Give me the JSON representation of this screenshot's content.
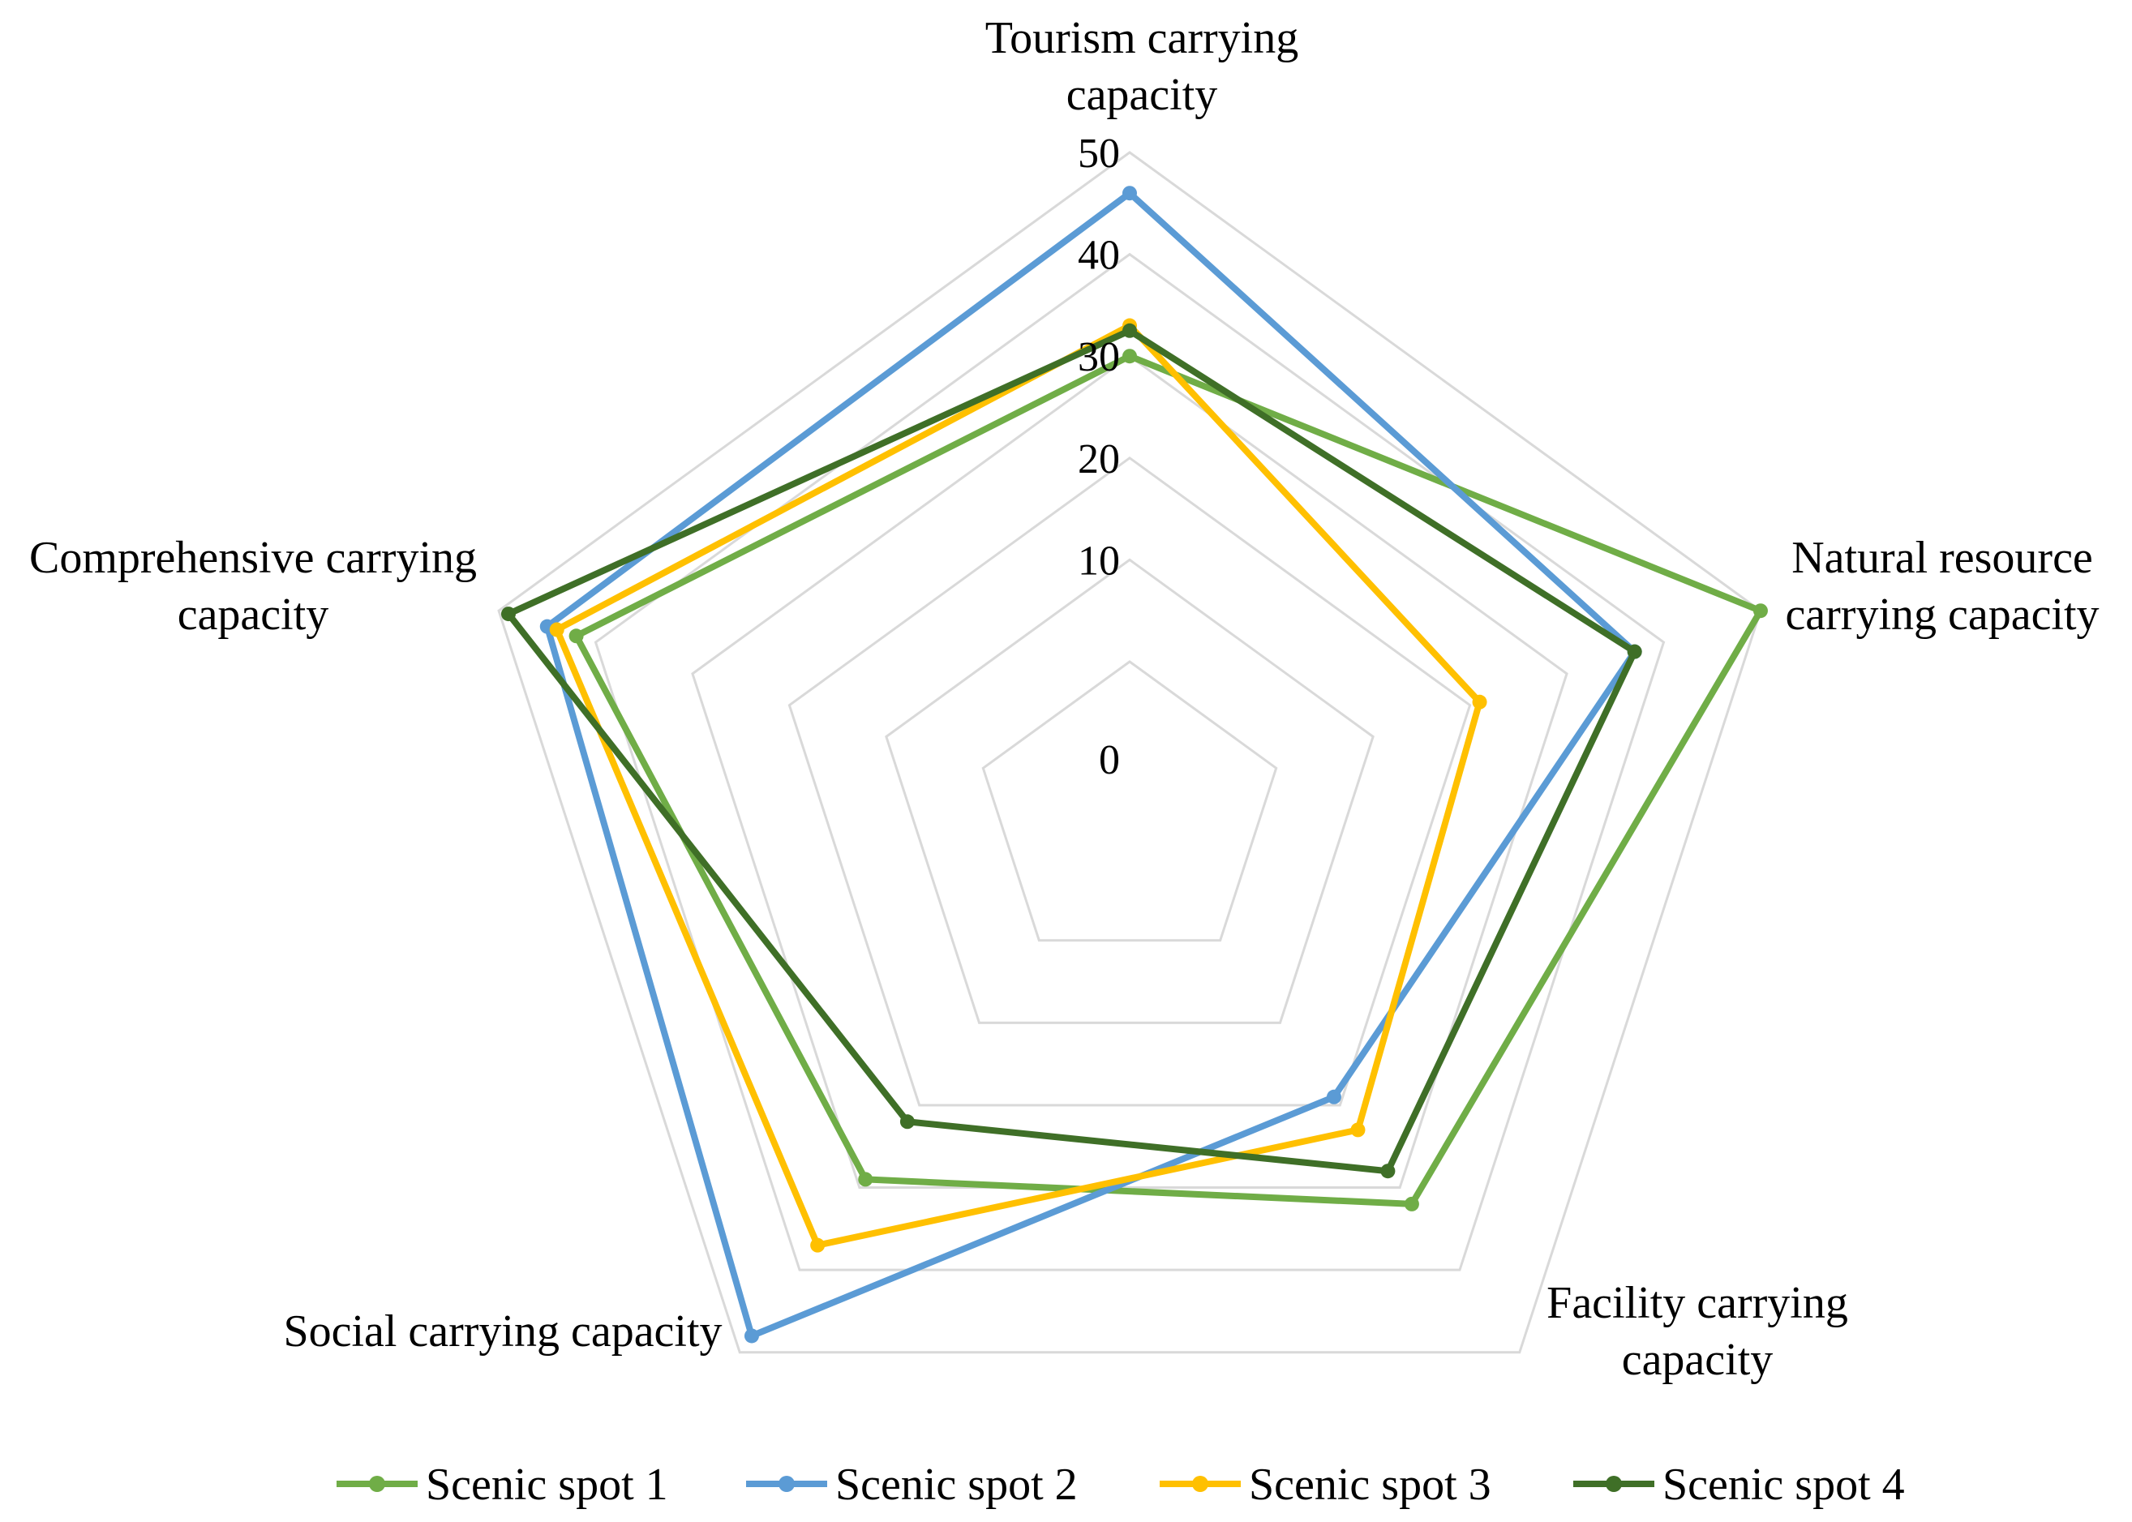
{
  "chart_data": {
    "type": "radar",
    "title": "",
    "axes": [
      {
        "label_lines": [
          "Tourism carrying",
          "capacity"
        ]
      },
      {
        "label_lines": [
          "Natural resource",
          "carrying capacity"
        ]
      },
      {
        "label_lines": [
          "Facility carrying",
          "capacity"
        ]
      },
      {
        "label_lines": [
          "Social carrying capacity"
        ]
      },
      {
        "label_lines": [
          "Comprehensive carrying",
          "capacity"
        ]
      }
    ],
    "ticks": [
      0,
      10,
      20,
      30,
      40,
      50
    ],
    "range": [
      0,
      50
    ],
    "grid": true,
    "legend_position": "bottom",
    "series": [
      {
        "name": "Scenic spot 1",
        "color": "#70ad47",
        "values": [
          30,
          50,
          32,
          29,
          42
        ]
      },
      {
        "name": "Scenic spot 2",
        "color": "#5b9bd5",
        "values": [
          46,
          37,
          19,
          48,
          45
        ]
      },
      {
        "name": "Scenic spot 3",
        "color": "#ffc000",
        "values": [
          33,
          21,
          23,
          37,
          44
        ]
      },
      {
        "name": "Scenic spot 4",
        "color": "#3f6f27",
        "values": [
          32.5,
          37,
          28,
          22,
          49
        ]
      }
    ]
  }
}
